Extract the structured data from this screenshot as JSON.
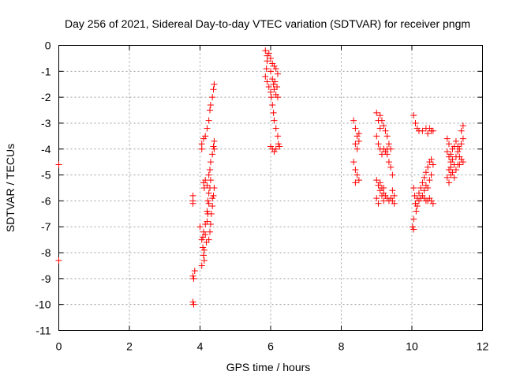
{
  "chart_data": {
    "type": "scatter",
    "title": "Day 256 of 2021, Sidereal Day-to-day VTEC variation (SDTVAR) for receiver pngm",
    "xlabel": "GPS time / hours",
    "ylabel": "SDTVAR / TECUs",
    "xlim": [
      0,
      12
    ],
    "ylim": [
      -11,
      0
    ],
    "xticks": [
      0,
      2,
      4,
      6,
      8,
      10,
      12
    ],
    "yticks": [
      0,
      -1,
      -2,
      -3,
      -4,
      -5,
      -6,
      -7,
      -8,
      -9,
      -10,
      -11
    ],
    "grid": true,
    "marker": "+",
    "color": "#ff0000",
    "series": [
      {
        "name": "SDTVAR",
        "points": [
          [
            0.0,
            -4.6
          ],
          [
            0.0,
            -8.3
          ],
          [
            3.8,
            -5.8
          ],
          [
            3.8,
            -6.0
          ],
          [
            3.8,
            -6.1
          ],
          [
            3.85,
            -8.7
          ],
          [
            3.8,
            -8.9
          ],
          [
            3.82,
            -9.0
          ],
          [
            3.8,
            -9.9
          ],
          [
            3.82,
            -10.0
          ],
          [
            4.05,
            -3.8
          ],
          [
            4.1,
            -3.6
          ],
          [
            4.15,
            -3.5
          ],
          [
            4.2,
            -3.2
          ],
          [
            4.25,
            -2.9
          ],
          [
            4.28,
            -2.5
          ],
          [
            4.3,
            -2.3
          ],
          [
            4.35,
            -2.0
          ],
          [
            4.38,
            -1.7
          ],
          [
            4.4,
            -1.5
          ],
          [
            4.05,
            -4.0
          ],
          [
            4.1,
            -5.3
          ],
          [
            4.12,
            -5.5
          ],
          [
            4.15,
            -5.2
          ],
          [
            4.2,
            -5.4
          ],
          [
            4.25,
            -5.0
          ],
          [
            4.28,
            -4.8
          ],
          [
            4.3,
            -4.5
          ],
          [
            4.35,
            -4.2
          ],
          [
            4.38,
            -3.9
          ],
          [
            4.0,
            -7.0
          ],
          [
            4.05,
            -7.5
          ],
          [
            4.08,
            -7.8
          ],
          [
            4.1,
            -8.1
          ],
          [
            4.12,
            -8.3
          ],
          [
            4.05,
            -8.5
          ],
          [
            4.15,
            -7.3
          ],
          [
            4.2,
            -6.8
          ],
          [
            4.22,
            -6.5
          ],
          [
            4.25,
            -6.1
          ],
          [
            4.1,
            -7.2
          ],
          [
            4.15,
            -6.9
          ],
          [
            4.2,
            -6.4
          ],
          [
            4.22,
            -6.0
          ],
          [
            4.25,
            -5.7
          ],
          [
            4.28,
            -5.5
          ],
          [
            4.3,
            -5.2
          ],
          [
            4.18,
            -7.6
          ],
          [
            4.12,
            -7.9
          ],
          [
            4.08,
            -7.4
          ],
          [
            4.3,
            -6.9
          ],
          [
            4.32,
            -6.5
          ],
          [
            4.35,
            -6.2
          ],
          [
            4.38,
            -5.8
          ],
          [
            4.4,
            -5.5
          ],
          [
            4.28,
            -7.2
          ],
          [
            4.25,
            -7.5
          ],
          [
            4.4,
            -3.7
          ],
          [
            4.4,
            -4.0
          ],
          [
            4.35,
            -5.9
          ],
          [
            5.85,
            -0.2
          ],
          [
            5.9,
            -0.4
          ],
          [
            5.9,
            -0.6
          ],
          [
            5.88,
            -0.9
          ],
          [
            5.85,
            -1.2
          ],
          [
            5.9,
            -1.4
          ],
          [
            5.95,
            -0.3
          ],
          [
            6.0,
            -0.5
          ],
          [
            6.05,
            -0.7
          ],
          [
            6.1,
            -0.8
          ],
          [
            6.15,
            -0.9
          ],
          [
            6.2,
            -1.1
          ],
          [
            6.0,
            -1.0
          ],
          [
            6.05,
            -1.3
          ],
          [
            6.08,
            -1.5
          ],
          [
            6.1,
            -1.7
          ],
          [
            6.15,
            -1.9
          ],
          [
            6.2,
            -2.0
          ],
          [
            6.0,
            -1.8
          ],
          [
            6.02,
            -2.0
          ],
          [
            6.05,
            -2.3
          ],
          [
            6.08,
            -2.6
          ],
          [
            6.1,
            -2.9
          ],
          [
            6.15,
            -3.2
          ],
          [
            6.2,
            -3.5
          ],
          [
            6.22,
            -3.8
          ],
          [
            6.0,
            -3.9
          ],
          [
            6.05,
            -4.0
          ],
          [
            6.1,
            -4.1
          ],
          [
            6.15,
            -4.0
          ],
          [
            6.25,
            -3.9
          ],
          [
            5.95,
            -1.6
          ],
          [
            6.12,
            -1.4
          ],
          [
            6.18,
            -1.6
          ],
          [
            8.35,
            -2.9
          ],
          [
            8.4,
            -3.2
          ],
          [
            8.45,
            -3.5
          ],
          [
            8.5,
            -3.7
          ],
          [
            8.45,
            -4.0
          ],
          [
            8.4,
            -3.8
          ],
          [
            8.35,
            -4.5
          ],
          [
            8.4,
            -4.8
          ],
          [
            8.45,
            -5.0
          ],
          [
            8.5,
            -5.2
          ],
          [
            8.4,
            -5.3
          ],
          [
            8.5,
            -3.4
          ],
          [
            9.0,
            -2.6
          ],
          [
            9.05,
            -2.9
          ],
          [
            9.1,
            -3.2
          ],
          [
            9.0,
            -3.5
          ],
          [
            9.05,
            -3.8
          ],
          [
            9.1,
            -4.0
          ],
          [
            9.15,
            -4.2
          ],
          [
            9.2,
            -4.0
          ],
          [
            9.1,
            -2.7
          ],
          [
            9.15,
            -2.9
          ],
          [
            9.2,
            -3.1
          ],
          [
            9.25,
            -3.3
          ],
          [
            9.3,
            -3.5
          ],
          [
            9.35,
            -3.8
          ],
          [
            9.4,
            -4.0
          ],
          [
            9.3,
            -4.2
          ],
          [
            9.35,
            -4.5
          ],
          [
            9.4,
            -4.7
          ],
          [
            9.45,
            -5.0
          ],
          [
            9.3,
            -4.0
          ],
          [
            9.25,
            -4.1
          ],
          [
            9.0,
            -5.2
          ],
          [
            9.05,
            -5.4
          ],
          [
            9.1,
            -5.6
          ],
          [
            9.15,
            -5.8
          ],
          [
            9.2,
            -6.0
          ],
          [
            9.1,
            -5.3
          ],
          [
            9.15,
            -5.5
          ],
          [
            9.2,
            -5.7
          ],
          [
            9.25,
            -5.8
          ],
          [
            9.3,
            -5.9
          ],
          [
            9.35,
            -6.0
          ],
          [
            9.4,
            -5.9
          ],
          [
            9.45,
            -6.0
          ],
          [
            9.5,
            -6.1
          ],
          [
            9.5,
            -5.8
          ],
          [
            9.45,
            -5.6
          ],
          [
            9.05,
            -6.1
          ],
          [
            9.0,
            -5.9
          ],
          [
            9.2,
            -5.5
          ],
          [
            10.05,
            -2.7
          ],
          [
            10.1,
            -3.0
          ],
          [
            10.15,
            -3.2
          ],
          [
            10.2,
            -3.3
          ],
          [
            10.3,
            -3.3
          ],
          [
            10.4,
            -3.2
          ],
          [
            10.45,
            -3.4
          ],
          [
            10.5,
            -3.2
          ],
          [
            10.55,
            -3.3
          ],
          [
            10.6,
            -3.3
          ],
          [
            10.05,
            -5.5
          ],
          [
            10.08,
            -5.8
          ],
          [
            10.1,
            -6.1
          ],
          [
            10.12,
            -6.4
          ],
          [
            10.05,
            -6.7
          ],
          [
            10.02,
            -7.0
          ],
          [
            10.05,
            -7.1
          ],
          [
            10.15,
            -5.9
          ],
          [
            10.2,
            -5.7
          ],
          [
            10.25,
            -5.5
          ],
          [
            10.3,
            -5.3
          ],
          [
            10.35,
            -5.1
          ],
          [
            10.4,
            -4.9
          ],
          [
            10.45,
            -4.7
          ],
          [
            10.5,
            -4.5
          ],
          [
            10.55,
            -4.4
          ],
          [
            10.6,
            -4.6
          ],
          [
            10.55,
            -5.0
          ],
          [
            10.2,
            -6.0
          ],
          [
            10.25,
            -5.9
          ],
          [
            10.3,
            -5.8
          ],
          [
            10.35,
            -5.9
          ],
          [
            10.4,
            -6.0
          ],
          [
            10.45,
            -6.0
          ],
          [
            10.5,
            -5.9
          ],
          [
            10.55,
            -6.0
          ],
          [
            10.6,
            -6.1
          ],
          [
            10.15,
            -6.2
          ],
          [
            10.35,
            -5.6
          ],
          [
            10.4,
            -5.4
          ],
          [
            10.5,
            -5.2
          ],
          [
            10.45,
            -5.5
          ],
          [
            11.0,
            -3.6
          ],
          [
            11.05,
            -3.8
          ],
          [
            11.0,
            -4.1
          ],
          [
            11.05,
            -4.3
          ],
          [
            11.1,
            -4.5
          ],
          [
            11.05,
            -4.8
          ],
          [
            11.1,
            -5.0
          ],
          [
            11.05,
            -5.3
          ],
          [
            11.0,
            -5.1
          ],
          [
            11.1,
            -4.2
          ],
          [
            11.15,
            -4.4
          ],
          [
            11.2,
            -4.6
          ],
          [
            11.25,
            -4.3
          ],
          [
            11.3,
            -4.1
          ],
          [
            11.35,
            -4.0
          ],
          [
            11.4,
            -3.8
          ],
          [
            11.45,
            -3.6
          ],
          [
            11.4,
            -3.3
          ],
          [
            11.45,
            -3.1
          ],
          [
            11.4,
            -4.4
          ],
          [
            11.35,
            -4.6
          ],
          [
            11.45,
            -4.5
          ],
          [
            11.15,
            -4.9
          ],
          [
            11.2,
            -5.1
          ],
          [
            11.25,
            -4.8
          ],
          [
            11.3,
            -4.6
          ],
          [
            11.2,
            -3.9
          ],
          [
            11.25,
            -3.7
          ],
          [
            11.3,
            -3.9
          ],
          [
            11.35,
            -4.3
          ],
          [
            11.15,
            -4.0
          ],
          [
            11.1,
            -4.7
          ]
        ]
      }
    ]
  }
}
